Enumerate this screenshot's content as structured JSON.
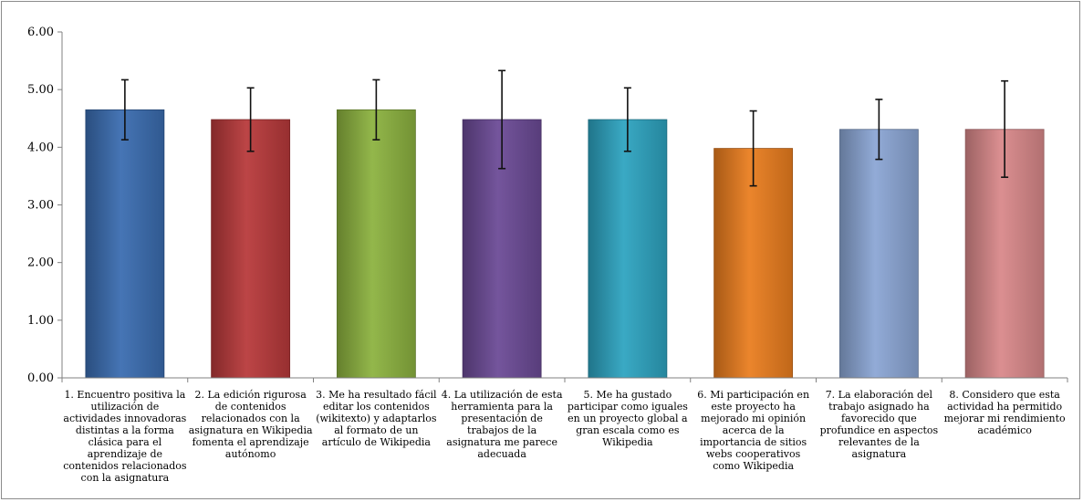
{
  "chart_data": {
    "type": "bar",
    "title": "",
    "xlabel": "",
    "ylabel": "",
    "ylim": [
      0,
      6
    ],
    "yticks": [
      "0.00",
      "1.00",
      "2.00",
      "3.00",
      "4.00",
      "5.00",
      "6.00"
    ],
    "grid": false,
    "legend": "none",
    "categories": [
      "1. Encuentro positiva la utilización de actividades innovadoras distintas a la forma clásica para el aprendizaje de contenidos relacionados con la asignatura",
      "2. La edición rigurosa de contenidos relacionados con la asignatura en Wikipedia fomenta el aprendizaje autónomo",
      "3. Me ha resultado fácil editar los contenidos (wikitexto) y adaptarlos al formato de un artículo de Wikipedia",
      "4. La utilización de esta herramienta para la presentación de trabajos de la asignatura me parece adecuada",
      "5. Me ha gustado participar como iguales en un proyecto global a gran escala como es Wikipedia",
      "6. Mi participación en este proyecto  ha mejorado  mi opinión acerca de la importancia de sitios webs cooperativos como Wikipedia",
      "7. La elaboración del trabajo asignado ha favorecido que profundice en aspectos relevantes de la asignatura",
      "8. Considero que esta actividad ha permitido mejorar mi rendimiento académico"
    ],
    "values": [
      4.65,
      4.48,
      4.65,
      4.48,
      4.48,
      3.98,
      4.31,
      4.31
    ],
    "error_low": [
      4.13,
      3.93,
      4.13,
      3.63,
      3.93,
      3.33,
      3.79,
      3.48
    ],
    "error_high": [
      5.17,
      5.03,
      5.17,
      5.33,
      5.03,
      4.63,
      4.83,
      5.15
    ],
    "colors": [
      "#3a6cb0",
      "#b8393a",
      "#8cb23f",
      "#6b4a96",
      "#2da3c0",
      "#ea7d1f",
      "#8ba6d4",
      "#d9888a"
    ]
  }
}
